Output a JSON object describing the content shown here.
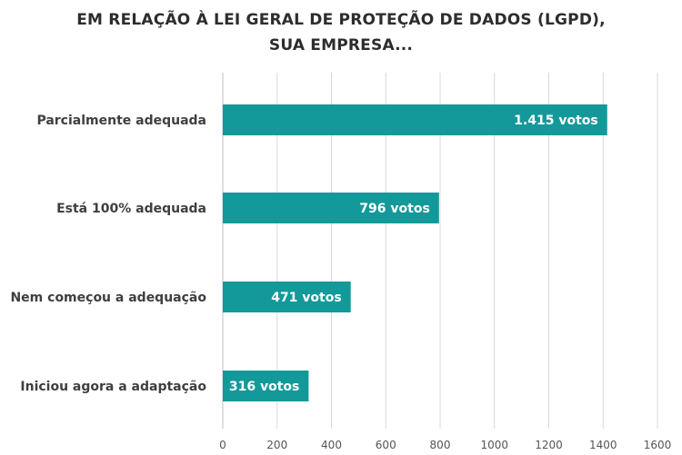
{
  "chart_data": {
    "type": "bar",
    "orientation": "horizontal",
    "title": "EM RELAÇÃO À LEI GERAL DE PROTEÇÃO DE DADOS (LGPD),",
    "subtitle": "SUA EMPRESA...",
    "categories": [
      "Parcialmente adequada",
      "Está 100% adequada",
      "Nem começou a adequação",
      "Iniciou agora a adaptação"
    ],
    "values": [
      1415,
      796,
      471,
      316
    ],
    "data_labels": [
      "1.415 votos",
      "796 votos",
      "471 votos",
      "316 votos"
    ],
    "xlim": [
      0,
      1600
    ],
    "xticks": [
      0,
      200,
      400,
      600,
      800,
      1000,
      1200,
      1400,
      1600
    ],
    "grid": true,
    "colors": {
      "bar": "#14999a",
      "grid": "#d9d9d9"
    }
  }
}
